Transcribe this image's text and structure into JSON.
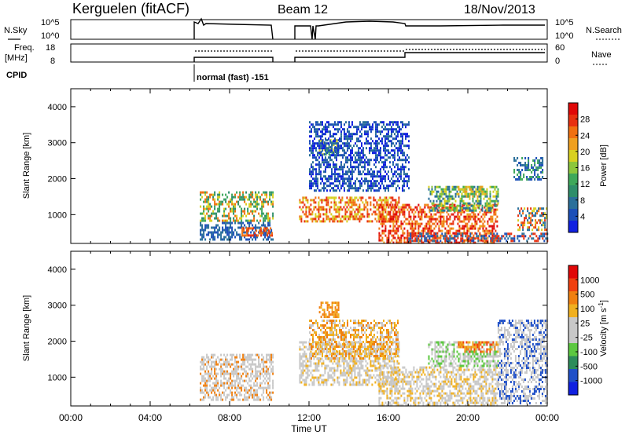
{
  "header": {
    "station": "Kerguelen (fitACF)",
    "beam": "Beam 12",
    "date": "18/Nov/2013"
  },
  "top_panels": {
    "nsky": {
      "left_label": "N.Sky",
      "right_label": "N.Search",
      "left_ticks": [
        "10^5",
        "10^0"
      ],
      "right_ticks": [
        "10^5",
        "10^0"
      ]
    },
    "freq": {
      "left_label_1": "Freq.",
      "left_label_2": "[MHz]",
      "right_label": "Nave",
      "left_ticks": [
        "18",
        "8"
      ],
      "right_ticks": [
        "60",
        "0"
      ]
    },
    "cpid": {
      "label": "CPID",
      "mode_text": "normal (fast) -151"
    }
  },
  "chart_data": [
    {
      "type": "heatmap",
      "name": "power",
      "ylabel": "Slant Range [km]",
      "ylim": [
        200,
        4500
      ],
      "yticks": [
        1000,
        2000,
        3000,
        4000
      ],
      "xlim": [
        0,
        24
      ],
      "colorbar": {
        "label": "Power [dB]",
        "ticks": [
          "4",
          "8",
          "12",
          "16",
          "20",
          "24",
          "28"
        ],
        "colors": [
          "#1020e0",
          "#1c4fb8",
          "#2a6f9a",
          "#2e8e6a",
          "#3ea85a",
          "#8cc63c",
          "#d8d020",
          "#f0a020",
          "#f07010",
          "#e83010",
          "#e00808"
        ]
      },
      "regions": [
        {
          "t": [
            6.5,
            10.2
          ],
          "r": [
            800,
            1650
          ],
          "c": [
            "#2e8e6a",
            "#3ea85a",
            "#d8d020",
            "#f07010"
          ]
        },
        {
          "t": [
            6.5,
            10.2
          ],
          "r": [
            300,
            800
          ],
          "c": [
            "#1c4fb8",
            "#2a6f9a"
          ]
        },
        {
          "t": [
            8.6,
            10.2
          ],
          "r": [
            450,
            650
          ],
          "c": [
            "#f07010",
            "#e83010"
          ]
        },
        {
          "t": [
            11.5,
            16.5
          ],
          "r": [
            800,
            1500
          ],
          "c": [
            "#d8d020",
            "#f07010",
            "#e83010"
          ]
        },
        {
          "t": [
            12.5,
            13.5
          ],
          "r": [
            2700,
            3100
          ],
          "c": [
            "#1c4fb8",
            "#2a6f9a",
            "#3ea85a",
            "#d8d020"
          ]
        },
        {
          "t": [
            12.0,
            17.0
          ],
          "r": [
            1700,
            3600
          ],
          "c": [
            "#1020e0",
            "#1c4fb8",
            "#2a6f9a"
          ]
        },
        {
          "t": [
            15.5,
            21.5
          ],
          "r": [
            250,
            1300
          ],
          "c": [
            "#f07010",
            "#e83010",
            "#e00808",
            "#f0a020"
          ]
        },
        {
          "t": [
            18.0,
            21.5
          ],
          "r": [
            1100,
            1800
          ],
          "c": [
            "#2a6f9a",
            "#3ea85a",
            "#8cc63c",
            "#d8d020"
          ]
        },
        {
          "t": [
            19.5,
            21.0
          ],
          "r": [
            1500,
            1800
          ],
          "c": [
            "#3ea85a",
            "#d8d020",
            "#f0a020"
          ]
        },
        {
          "t": [
            22.3,
            23.8
          ],
          "r": [
            2000,
            2600
          ],
          "c": [
            "#1c4fb8",
            "#2a6f9a",
            "#3ea85a"
          ]
        },
        {
          "t": [
            22.5,
            24.0
          ],
          "r": [
            600,
            1200
          ],
          "c": [
            "#2a6f9a",
            "#d8d020",
            "#f07010",
            "#e83010"
          ]
        },
        {
          "t": [
            17.0,
            24.0
          ],
          "r": [
            250,
            500
          ],
          "c": [
            "#1c4fb8",
            "#2a6f9a",
            "#e83010"
          ]
        }
      ]
    },
    {
      "type": "heatmap",
      "name": "velocity",
      "ylabel": "Slant Range [km]",
      "ylim": [
        200,
        4500
      ],
      "yticks": [
        1000,
        2000,
        3000,
        4000
      ],
      "xlim": [
        0,
        24
      ],
      "xlabel": "Time UT",
      "xticks": [
        "00:00",
        "04:00",
        "08:00",
        "12:00",
        "16:00",
        "20:00",
        "00:00"
      ],
      "colorbar": {
        "label": "Velocity [m s^-1]",
        "ticks": [
          "1000",
          "500",
          "100",
          "25",
          "-25",
          "-100",
          "-500",
          "-1000"
        ],
        "colors": [
          "#1020e0",
          "#2050c8",
          "#2c8c5a",
          "#5cc840",
          "#c8c8c8",
          "#c8c8c8",
          "#f0b020",
          "#f08010",
          "#f04010",
          "#e00808"
        ]
      },
      "regions": [
        {
          "t": [
            6.5,
            10.2
          ],
          "r": [
            400,
            1650
          ],
          "c": [
            "#c8c8c8",
            "#c8c8c8",
            "#c8c8c8",
            "#f08010"
          ]
        },
        {
          "t": [
            11.5,
            16.5
          ],
          "r": [
            800,
            2000
          ],
          "c": [
            "#c8c8c8",
            "#c8c8c8",
            "#c8c8c8",
            "#f0b020"
          ]
        },
        {
          "t": [
            12.5,
            13.5
          ],
          "r": [
            2700,
            3100
          ],
          "c": [
            "#f0b020",
            "#f08010"
          ]
        },
        {
          "t": [
            12.0,
            16.5
          ],
          "r": [
            1500,
            2600
          ],
          "c": [
            "#c8c8c8",
            "#f0b020",
            "#f08010"
          ]
        },
        {
          "t": [
            15.5,
            21.5
          ],
          "r": [
            250,
            1300
          ],
          "c": [
            "#c8c8c8",
            "#c8c8c8",
            "#f0b020"
          ]
        },
        {
          "t": [
            18.0,
            21.5
          ],
          "r": [
            1300,
            2000
          ],
          "c": [
            "#c8c8c8",
            "#5cc840",
            "#c8c8c8"
          ]
        },
        {
          "t": [
            19.5,
            21.5
          ],
          "r": [
            1700,
            2000
          ],
          "c": [
            "#f08010",
            "#f0b020",
            "#f04010"
          ]
        },
        {
          "t": [
            21.5,
            24.0
          ],
          "r": [
            300,
            2600
          ],
          "c": [
            "#c8c8c8",
            "#c8c8c8",
            "#2050c8"
          ]
        }
      ]
    }
  ],
  "colors": {
    "axis": "#000000",
    "background": "#ffffff"
  }
}
